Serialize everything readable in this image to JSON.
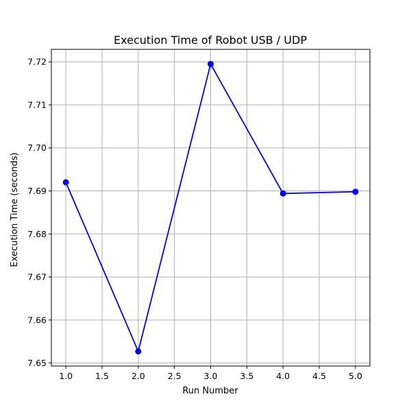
{
  "chart_data": {
    "type": "line",
    "title": "Execution Time of Robot USB / UDP",
    "xlabel": "Run Number",
    "ylabel": "Execution Time (seconds)",
    "x": [
      1,
      2,
      3,
      4,
      5
    ],
    "series": [
      {
        "values": [
          7.692,
          7.6527,
          7.7195,
          7.6894,
          7.6898
        ],
        "color": "#0000ff",
        "marker": "circle"
      }
    ],
    "xticks": [
      1.0,
      1.5,
      2.0,
      2.5,
      3.0,
      3.5,
      4.0,
      4.5,
      5.0
    ],
    "xtick_labels": [
      "1.0",
      "1.5",
      "2.0",
      "2.5",
      "3.0",
      "3.5",
      "4.0",
      "4.5",
      "5.0"
    ],
    "yticks": [
      7.65,
      7.66,
      7.67,
      7.68,
      7.69,
      7.7,
      7.71,
      7.72
    ],
    "ytick_labels": [
      "7.65",
      "7.66",
      "7.67",
      "7.68",
      "7.69",
      "7.70",
      "7.71",
      "7.72"
    ],
    "xlim": [
      0.8,
      5.2
    ],
    "ylim": [
      7.6493,
      7.7229
    ],
    "grid": true,
    "grid_color": "#b0b0b0"
  }
}
